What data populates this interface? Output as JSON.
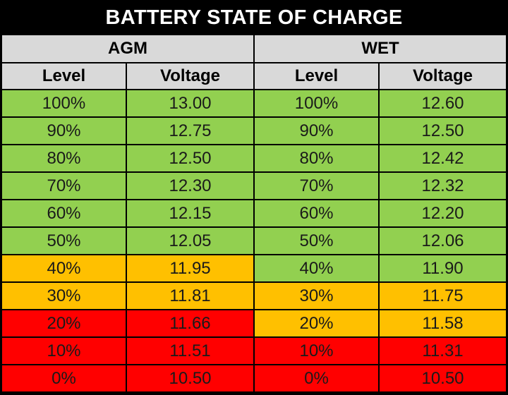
{
  "title": "BATTERY STATE OF CHARGE",
  "colors": {
    "green": "#92d050",
    "orange": "#ffc000",
    "red": "#ff0000",
    "header": "#d9d9d9",
    "border": "#000000"
  },
  "groups": [
    {
      "name": "AGM",
      "level_header": "Level",
      "voltage_header": "Voltage",
      "rows": [
        {
          "level": "100%",
          "voltage": "13.00",
          "status": "green"
        },
        {
          "level": "90%",
          "voltage": "12.75",
          "status": "green"
        },
        {
          "level": "80%",
          "voltage": "12.50",
          "status": "green"
        },
        {
          "level": "70%",
          "voltage": "12.30",
          "status": "green"
        },
        {
          "level": "60%",
          "voltage": "12.15",
          "status": "green"
        },
        {
          "level": "50%",
          "voltage": "12.05",
          "status": "green"
        },
        {
          "level": "40%",
          "voltage": "11.95",
          "status": "orange"
        },
        {
          "level": "30%",
          "voltage": "11.81",
          "status": "orange"
        },
        {
          "level": "20%",
          "voltage": "11.66",
          "status": "red"
        },
        {
          "level": "10%",
          "voltage": "11.51",
          "status": "red"
        },
        {
          "level": "0%",
          "voltage": "10.50",
          "status": "red"
        }
      ]
    },
    {
      "name": "WET",
      "level_header": "Level",
      "voltage_header": "Voltage",
      "rows": [
        {
          "level": "100%",
          "voltage": "12.60",
          "status": "green"
        },
        {
          "level": "90%",
          "voltage": "12.50",
          "status": "green"
        },
        {
          "level": "80%",
          "voltage": "12.42",
          "status": "green"
        },
        {
          "level": "70%",
          "voltage": "12.32",
          "status": "green"
        },
        {
          "level": "60%",
          "voltage": "12.20",
          "status": "green"
        },
        {
          "level": "50%",
          "voltage": "12.06",
          "status": "green"
        },
        {
          "level": "40%",
          "voltage": "11.90",
          "status": "green"
        },
        {
          "level": "30%",
          "voltage": "11.75",
          "status": "orange"
        },
        {
          "level": "20%",
          "voltage": "11.58",
          "status": "orange"
        },
        {
          "level": "10%",
          "voltage": "11.31",
          "status": "red"
        },
        {
          "level": "0%",
          "voltage": "10.50",
          "status": "red"
        }
      ]
    }
  ]
}
